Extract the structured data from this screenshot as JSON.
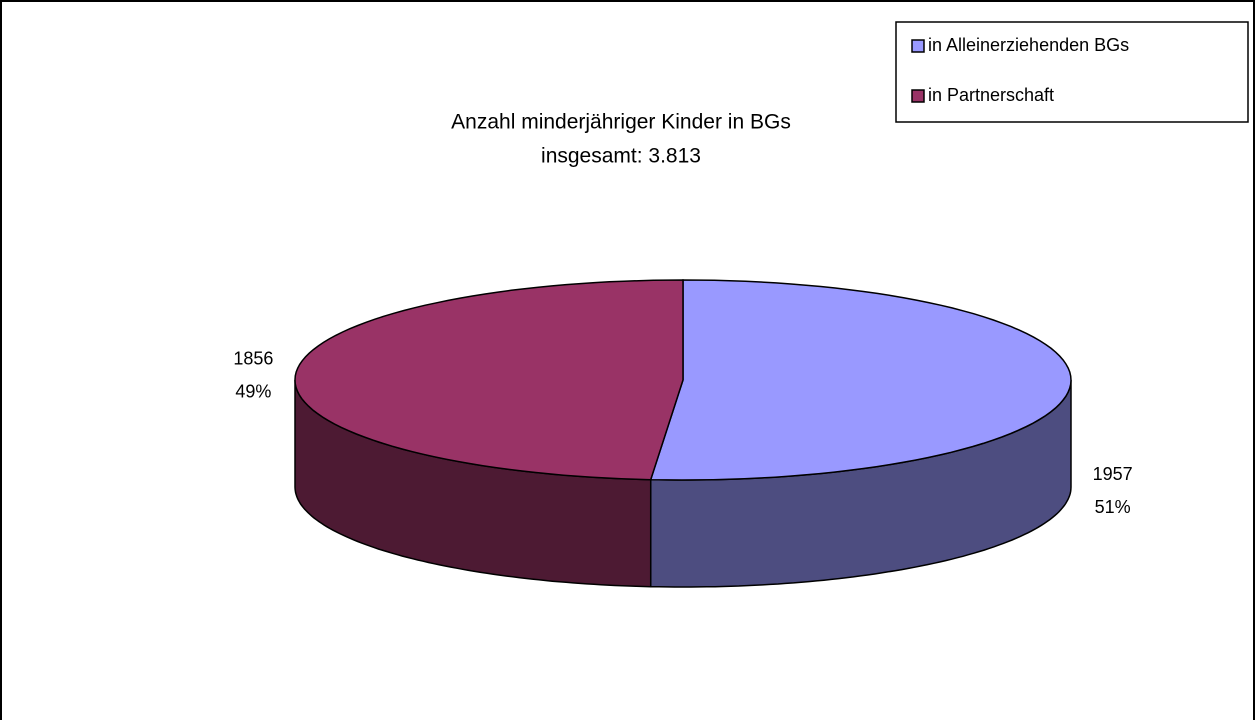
{
  "chart_data": {
    "type": "pie3d",
    "title": "Anzahl minderjähriger Kinder in BGs",
    "subtitle": "insgesamt: 3.813",
    "categories": [
      "in Alleinerziehenden BGs",
      "in Partnerschaft"
    ],
    "values": [
      1957,
      1856
    ],
    "percent_labels": [
      "51%",
      "49%"
    ],
    "colors": [
      "#9999ff",
      "#993366"
    ],
    "legend": "top-right"
  }
}
